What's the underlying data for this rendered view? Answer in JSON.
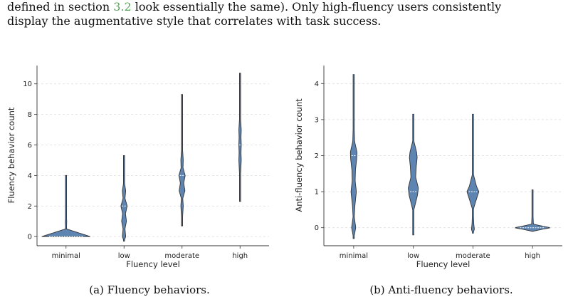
{
  "intro": {
    "line1_before": "defined in section",
    "line1_ref": "3.2",
    "line1_after": "look essentially the same).  Only high-fluency users consistently",
    "line2": "display the augmentative style that correlates with task success."
  },
  "captions": {
    "a": "(a) Fluency behaviors.",
    "b": "(b) Anti-fluency behaviors."
  },
  "colors": {
    "violin_fill": "#4c78a8",
    "violin_edge": "#333333",
    "grid": "#dddddd"
  },
  "chart_data": [
    {
      "type": "violin",
      "xlabel": "Fluency level",
      "ylabel": "Fluency behavior count",
      "categories": [
        "minimal",
        "low",
        "moderate",
        "high"
      ],
      "ylim": [
        -0.6,
        11.2
      ],
      "yticks": [
        0,
        2,
        4,
        6,
        8,
        10
      ],
      "grid": true,
      "series": [
        {
          "category": "minimal",
          "range": [
            0,
            4
          ],
          "density": [
            {
              "y": 0,
              "w": 1
            },
            {
              "y": 0.5,
              "w": 0.02
            },
            {
              "y": 1,
              "w": 0.03
            },
            {
              "y": 1.5,
              "w": 0.01
            },
            {
              "y": 4,
              "w": 0
            }
          ],
          "median": 0
        },
        {
          "category": "low",
          "range": [
            -0.3,
            5.3
          ],
          "density": [
            {
              "y": -0.3,
              "w": 0
            },
            {
              "y": 0,
              "w": 0.07
            },
            {
              "y": 0.5,
              "w": 0.04
            },
            {
              "y": 1,
              "w": 0.1
            },
            {
              "y": 1.5,
              "w": 0.06
            },
            {
              "y": 2,
              "w": 0.13
            },
            {
              "y": 2.5,
              "w": 0.04
            },
            {
              "y": 3,
              "w": 0.07
            },
            {
              "y": 3.5,
              "w": 0.02
            },
            {
              "y": 4,
              "w": 0.01
            },
            {
              "y": 5.3,
              "w": 0
            }
          ],
          "median": 2
        },
        {
          "category": "moderate",
          "range": [
            0.7,
            9.3
          ],
          "density": [
            {
              "y": 0.7,
              "w": 0
            },
            {
              "y": 2,
              "w": 0.05
            },
            {
              "y": 2.5,
              "w": 0.03
            },
            {
              "y": 3,
              "w": 0.12
            },
            {
              "y": 3.5,
              "w": 0.07
            },
            {
              "y": 4,
              "w": 0.13
            },
            {
              "y": 4.5,
              "w": 0.04
            },
            {
              "y": 5,
              "w": 0.05
            },
            {
              "y": 6,
              "w": 0.01
            },
            {
              "y": 9.3,
              "w": 0
            }
          ],
          "median": 4
        },
        {
          "category": "high",
          "range": [
            2.3,
            10.7
          ],
          "density": [
            {
              "y": 2.3,
              "w": 0
            },
            {
              "y": 4,
              "w": 0.02
            },
            {
              "y": 5,
              "w": 0.05
            },
            {
              "y": 5.5,
              "w": 0.04
            },
            {
              "y": 6,
              "w": 0.05
            },
            {
              "y": 6.5,
              "w": 0.04
            },
            {
              "y": 7,
              "w": 0.05
            },
            {
              "y": 8,
              "w": 0.01
            },
            {
              "y": 10.7,
              "w": 0
            }
          ],
          "median": 6
        }
      ]
    },
    {
      "type": "violin",
      "xlabel": "Fluency level",
      "ylabel": "Anti-fluency behavior count",
      "categories": [
        "minimal",
        "low",
        "moderate",
        "high"
      ],
      "ylim": [
        -0.5,
        4.5
      ],
      "yticks": [
        0,
        1,
        2,
        3,
        4
      ],
      "grid": true,
      "series": [
        {
          "category": "minimal",
          "range": [
            -0.3,
            4.25
          ],
          "density": [
            {
              "y": -0.3,
              "w": 0
            },
            {
              "y": 0,
              "w": 0.07
            },
            {
              "y": 0.3,
              "w": 0.02
            },
            {
              "y": 0.6,
              "w": 0.04
            },
            {
              "y": 1,
              "w": 0.09
            },
            {
              "y": 1.3,
              "w": 0.05
            },
            {
              "y": 1.6,
              "w": 0.06
            },
            {
              "y": 1.9,
              "w": 0.1
            },
            {
              "y": 2.1,
              "w": 0.11
            },
            {
              "y": 2.4,
              "w": 0.03
            },
            {
              "y": 3,
              "w": 0.01
            },
            {
              "y": 4.25,
              "w": 0
            }
          ],
          "median": 2
        },
        {
          "category": "low",
          "range": [
            -0.2,
            3.15
          ],
          "density": [
            {
              "y": -0.2,
              "w": 0
            },
            {
              "y": 0.5,
              "w": 0.02
            },
            {
              "y": 0.9,
              "w": 0.14
            },
            {
              "y": 1.1,
              "w": 0.17
            },
            {
              "y": 1.4,
              "w": 0.08
            },
            {
              "y": 1.7,
              "w": 0.1
            },
            {
              "y": 1.95,
              "w": 0.13
            },
            {
              "y": 2.1,
              "w": 0.11
            },
            {
              "y": 2.4,
              "w": 0.02
            },
            {
              "y": 3.15,
              "w": 0
            }
          ],
          "median": 1
        },
        {
          "category": "moderate",
          "range": [
            -0.15,
            3.15
          ],
          "density": [
            {
              "y": -0.15,
              "w": 0
            },
            {
              "y": -0.05,
              "w": 0.05
            },
            {
              "y": 0.1,
              "w": 0.03
            },
            {
              "y": 0.5,
              "w": 0.01
            },
            {
              "y": 0.85,
              "w": 0.14
            },
            {
              "y": 1,
              "w": 0.2
            },
            {
              "y": 1.15,
              "w": 0.12
            },
            {
              "y": 1.5,
              "w": 0.01
            },
            {
              "y": 2,
              "w": 0.02
            },
            {
              "y": 3.15,
              "w": 0
            }
          ],
          "median": 1
        },
        {
          "category": "high",
          "range": [
            -0.1,
            1.05
          ],
          "density": [
            {
              "y": -0.1,
              "w": 0
            },
            {
              "y": -0.04,
              "w": 0.35
            },
            {
              "y": 0,
              "w": 0.6
            },
            {
              "y": 0.04,
              "w": 0.35
            },
            {
              "y": 0.1,
              "w": 0.03
            },
            {
              "y": 0.5,
              "w": 0.01
            },
            {
              "y": 1.05,
              "w": 0
            }
          ],
          "median": 0
        }
      ]
    }
  ]
}
